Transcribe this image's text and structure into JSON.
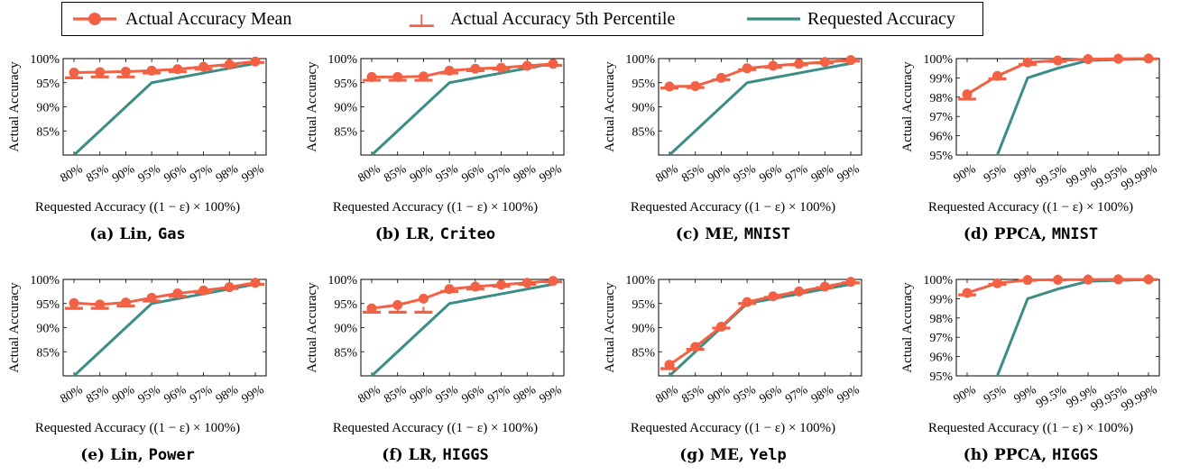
{
  "colors": {
    "mean": "#f26144",
    "p5": "#f26144",
    "requested": "#3a8e85",
    "axis": "#000000",
    "grid": "#b0b0b0"
  },
  "legend": {
    "mean": "Actual Accuracy Mean",
    "p5": "Actual Accuracy 5th Percentile",
    "requested": "Requested Accuracy"
  },
  "axis_text": {
    "ylabel": "Actual Accuracy",
    "xlabel": "Requested Accuracy ((1 − ε) × 100%)"
  },
  "captions": [
    {
      "label": "(a)",
      "model": "Lin,",
      "dataset": "Gas"
    },
    {
      "label": "(b)",
      "model": "LR,",
      "dataset": "Criteo"
    },
    {
      "label": "(c)",
      "model": "ME,",
      "dataset": "MNIST"
    },
    {
      "label": "(d)",
      "model": "PPCA,",
      "dataset": "MNIST"
    },
    {
      "label": "(e)",
      "model": "Lin,",
      "dataset": "Power"
    },
    {
      "label": "(f)",
      "model": "LR,",
      "dataset": "HIGGS"
    },
    {
      "label": "(g)",
      "model": "ME,",
      "dataset": "Yelp"
    },
    {
      "label": "(h)",
      "model": "PPCA,",
      "dataset": "HIGGS"
    }
  ],
  "chart_data": [
    {
      "type": "line",
      "ylim": [
        80,
        100
      ],
      "yticks": [
        85,
        90,
        95,
        100
      ],
      "ytick_labels": [
        "85%",
        "90%",
        "95%",
        "100%"
      ],
      "categories": [
        "80%",
        "85%",
        "90%",
        "95%",
        "96%",
        "97%",
        "98%",
        "99%"
      ],
      "series": [
        {
          "name": "Actual Accuracy Mean",
          "values": [
            97.1,
            97.2,
            97.3,
            97.5,
            97.8,
            98.3,
            98.8,
            99.4
          ]
        },
        {
          "name": "Actual Accuracy 5th Percentile",
          "values": [
            96.0,
            96.2,
            96.2,
            97.0,
            97.3,
            97.8,
            98.5,
            99.2
          ]
        },
        {
          "name": "Requested Accuracy",
          "values": [
            80,
            85,
            90,
            95,
            96,
            97,
            98,
            99
          ]
        }
      ]
    },
    {
      "type": "line",
      "ylim": [
        80,
        100
      ],
      "yticks": [
        85,
        90,
        95,
        100
      ],
      "ytick_labels": [
        "85%",
        "90%",
        "95%",
        "100%"
      ],
      "categories": [
        "80%",
        "85%",
        "90%",
        "95%",
        "96%",
        "97%",
        "98%",
        "99%"
      ],
      "series": [
        {
          "name": "Actual Accuracy Mean",
          "values": [
            96.2,
            96.2,
            96.3,
            97.5,
            97.9,
            98.1,
            98.5,
            98.9
          ]
        },
        {
          "name": "Actual Accuracy 5th Percentile",
          "values": [
            95.5,
            95.5,
            95.5,
            97.0,
            97.5,
            97.8,
            98.2,
            98.6
          ]
        },
        {
          "name": "Requested Accuracy",
          "values": [
            80,
            85,
            90,
            95,
            96,
            97,
            98,
            99
          ]
        }
      ]
    },
    {
      "type": "line",
      "ylim": [
        80,
        100
      ],
      "yticks": [
        85,
        90,
        95,
        100
      ],
      "ytick_labels": [
        "85%",
        "90%",
        "95%",
        "100%"
      ],
      "categories": [
        "80%",
        "85%",
        "90%",
        "95%",
        "96%",
        "97%",
        "98%",
        "99%"
      ],
      "series": [
        {
          "name": "Actual Accuracy Mean",
          "values": [
            94.2,
            94.3,
            96.0,
            98.0,
            98.5,
            98.9,
            99.3,
            99.7
          ]
        },
        {
          "name": "Actual Accuracy 5th Percentile",
          "values": [
            93.9,
            94.0,
            95.6,
            97.7,
            98.2,
            98.7,
            99.1,
            99.5
          ]
        },
        {
          "name": "Requested Accuracy",
          "values": [
            80,
            85,
            90,
            95,
            96,
            97,
            98,
            99
          ]
        }
      ]
    },
    {
      "type": "line",
      "ylim": [
        95,
        100
      ],
      "yticks": [
        95,
        96,
        97,
        98,
        99,
        100
      ],
      "ytick_labels": [
        "95%",
        "96%",
        "97%",
        "98%",
        "99%",
        "100%"
      ],
      "categories": [
        "90%",
        "95%",
        "99%",
        "99.5%",
        "99.9%",
        "99.95%",
        "99.99%"
      ],
      "series": [
        {
          "name": "Actual Accuracy Mean",
          "values": [
            98.15,
            99.1,
            99.8,
            99.9,
            99.97,
            99.99,
            100
          ]
        },
        {
          "name": "Actual Accuracy 5th Percentile",
          "values": [
            97.9,
            98.95,
            99.7,
            99.85,
            99.95,
            99.98,
            99.99
          ]
        },
        {
          "name": "Requested Accuracy",
          "values": [
            90,
            95,
            99,
            99.5,
            99.9,
            99.95,
            99.99
          ]
        }
      ]
    },
    {
      "type": "line",
      "ylim": [
        80,
        100
      ],
      "yticks": [
        85,
        90,
        95,
        100
      ],
      "ytick_labels": [
        "85%",
        "90%",
        "95%",
        "100%"
      ],
      "categories": [
        "80%",
        "85%",
        "90%",
        "95%",
        "96%",
        "97%",
        "98%",
        "99%"
      ],
      "series": [
        {
          "name": "Actual Accuracy Mean",
          "values": [
            95.1,
            94.8,
            95.2,
            96.2,
            97.1,
            97.7,
            98.4,
            99.3
          ]
        },
        {
          "name": "Actual Accuracy 5th Percentile",
          "values": [
            94.0,
            94.0,
            94.5,
            95.5,
            96.5,
            97.3,
            98.1,
            99.0
          ]
        },
        {
          "name": "Requested Accuracy",
          "values": [
            80,
            85,
            90,
            95,
            96,
            97,
            98,
            99
          ]
        }
      ]
    },
    {
      "type": "line",
      "ylim": [
        80,
        100
      ],
      "yticks": [
        85,
        90,
        95,
        100
      ],
      "ytick_labels": [
        "85%",
        "90%",
        "95%",
        "100%"
      ],
      "categories": [
        "80%",
        "85%",
        "90%",
        "95%",
        "96%",
        "97%",
        "98%",
        "99%"
      ],
      "series": [
        {
          "name": "Actual Accuracy Mean",
          "values": [
            94.0,
            94.7,
            96.0,
            98.0,
            98.5,
            98.9,
            99.3,
            99.7
          ]
        },
        {
          "name": "Actual Accuracy 5th Percentile",
          "values": [
            93.2,
            93.2,
            93.2,
            97.5,
            98.0,
            98.6,
            99.0,
            99.5
          ]
        },
        {
          "name": "Requested Accuracy",
          "values": [
            80,
            85,
            90,
            95,
            96,
            97,
            98,
            99
          ]
        }
      ]
    },
    {
      "type": "line",
      "ylim": [
        80,
        100
      ],
      "yticks": [
        85,
        90,
        95,
        100
      ],
      "ytick_labels": [
        "85%",
        "90%",
        "95%",
        "100%"
      ],
      "categories": [
        "80%",
        "85%",
        "90%",
        "95%",
        "96%",
        "97%",
        "98%",
        "99%"
      ],
      "series": [
        {
          "name": "Actual Accuracy Mean",
          "values": [
            82.3,
            86.0,
            90.2,
            95.3,
            96.5,
            97.5,
            98.5,
            99.5
          ]
        },
        {
          "name": "Actual Accuracy 5th Percentile",
          "values": [
            81.5,
            85.5,
            89.9,
            95.0,
            96.3,
            97.3,
            98.3,
            99.3
          ]
        },
        {
          "name": "Requested Accuracy",
          "values": [
            80,
            85,
            90,
            95,
            96,
            97,
            98,
            99
          ]
        }
      ]
    },
    {
      "type": "line",
      "ylim": [
        95,
        100
      ],
      "yticks": [
        95,
        96,
        97,
        98,
        99,
        100
      ],
      "ytick_labels": [
        "95%",
        "96%",
        "97%",
        "98%",
        "99%",
        "100%"
      ],
      "categories": [
        "90%",
        "95%",
        "99%",
        "99.5%",
        "99.9%",
        "99.95%",
        "99.99%"
      ],
      "series": [
        {
          "name": "Actual Accuracy Mean",
          "values": [
            99.3,
            99.8,
            99.97,
            99.98,
            99.99,
            100,
            100
          ]
        },
        {
          "name": "Actual Accuracy 5th Percentile",
          "values": [
            99.2,
            99.75,
            99.95,
            99.97,
            99.98,
            99.99,
            99.99
          ]
        },
        {
          "name": "Requested Accuracy",
          "values": [
            90,
            95,
            99,
            99.5,
            99.9,
            99.95,
            99.99
          ]
        }
      ]
    }
  ]
}
